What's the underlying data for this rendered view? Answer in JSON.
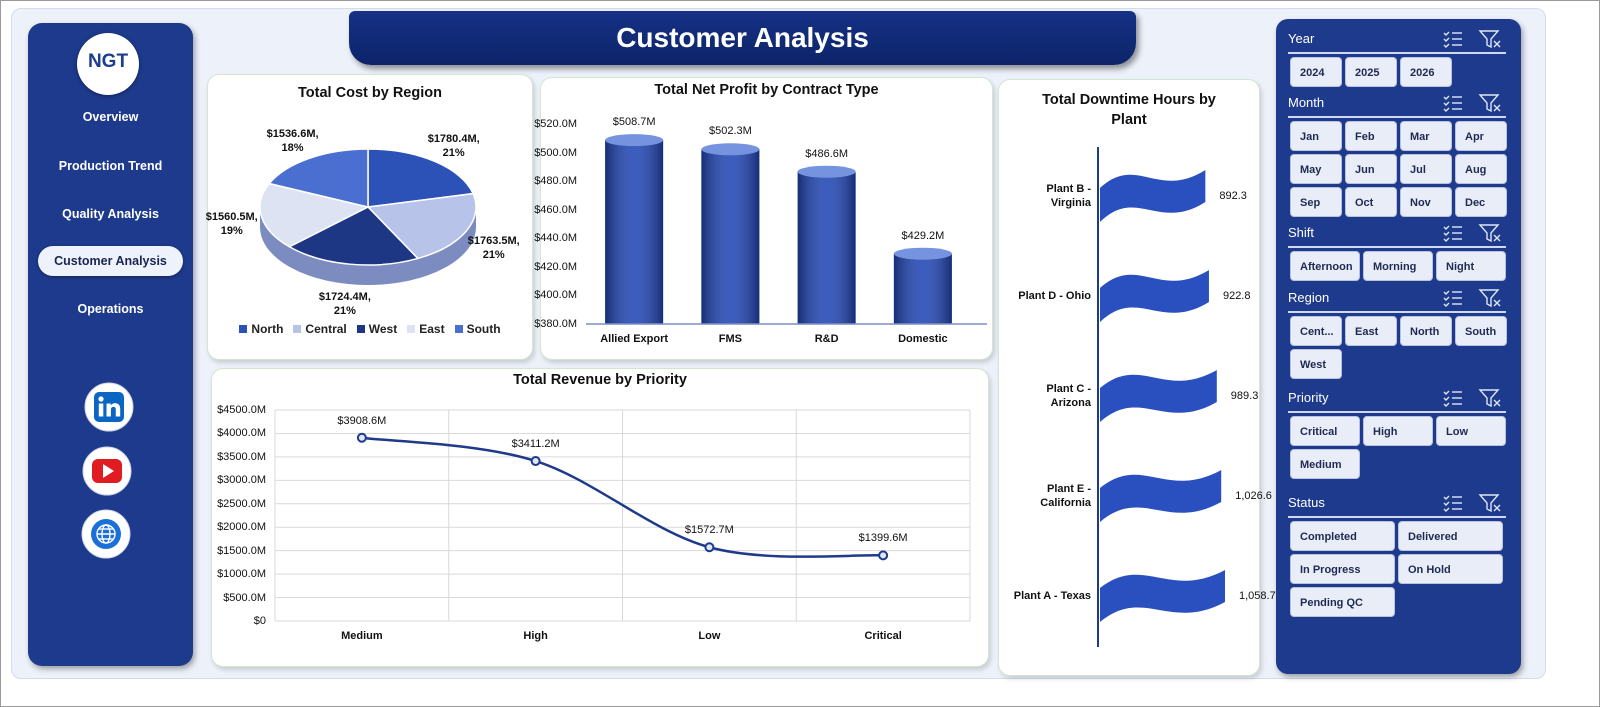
{
  "header": {
    "title": "Customer Analysis"
  },
  "nav": {
    "logo": "NGT",
    "items": [
      "Overview",
      "Production Trend",
      "Quality Analysis",
      "Customer Analysis",
      "Operations"
    ],
    "active": 3
  },
  "chart_data": [
    {
      "type": "pie",
      "title": "Total Cost by Region",
      "categories": [
        "North",
        "Central",
        "West",
        "East",
        "South"
      ],
      "values": [
        1780.4,
        1763.5,
        1724.4,
        1560.5,
        1536.6
      ],
      "value_labels": [
        "$1780.4M,\n21%",
        "$1763.5M,\n21%",
        "$1724.4M,\n21%",
        "$1560.5M,\n19%",
        "$1536.6M,\n18%"
      ],
      "colors": [
        "#2c52b8",
        "#b7c3e8",
        "#1d3785",
        "#dde3f3",
        "#4a6fd0"
      ],
      "legend": "bottom"
    },
    {
      "type": "bar",
      "title": "Total Net Profit by Contract Type",
      "categories": [
        "Allied Export",
        "FMS",
        "R&D",
        "Domestic"
      ],
      "values": [
        508.7,
        502.3,
        486.6,
        429.2
      ],
      "value_labels": [
        "$508.7M",
        "$502.3M",
        "$486.6M",
        "$429.2M"
      ],
      "color": "#2146b5",
      "ylim": [
        380,
        520
      ],
      "grid": false,
      "yticks": [
        {
          "value": 380,
          "label": "$380.0M"
        },
        {
          "value": 400,
          "label": "$400.0M"
        },
        {
          "value": 420,
          "label": "$420.0M"
        },
        {
          "value": 440,
          "label": "$440.0M"
        },
        {
          "value": 460,
          "label": "$460.0M"
        },
        {
          "value": 480,
          "label": "$480.0M"
        },
        {
          "value": 500,
          "label": "$500.0M"
        },
        {
          "value": 520,
          "label": "$520.0M"
        }
      ]
    },
    {
      "type": "hbar",
      "title": "Total Downtime Hours by Plant",
      "categories": [
        "Plant B - Virginia",
        "Plant D - Ohio",
        "Plant C - Arizona",
        "Plant E - California",
        "Plant A - Texas"
      ],
      "values": [
        892.3,
        922.8,
        989.3,
        1026.6,
        1058.7
      ],
      "value_labels": [
        "892.3",
        "922.8",
        "989.3",
        "1,026.6",
        "1,058.7"
      ],
      "color": "#2a50c0"
    },
    {
      "type": "line",
      "title": "Total Revenue by Priority",
      "categories": [
        "Medium",
        "High",
        "Low",
        "Critical"
      ],
      "values": [
        3908.6,
        3411.2,
        1572.7,
        1399.6
      ],
      "value_labels": [
        "$3908.6M",
        "$3411.2M",
        "$1572.7M",
        "$1399.6M"
      ],
      "color": "#1f3a8a",
      "ylim": [
        0,
        4500
      ],
      "grid": true,
      "yticks": [
        {
          "value": 0,
          "label": "$0"
        },
        {
          "value": 500,
          "label": "$500.0M"
        },
        {
          "value": 1000,
          "label": "$1000.0M"
        },
        {
          "value": 1500,
          "label": "$1500.0M"
        },
        {
          "value": 2000,
          "label": "$2000.0M"
        },
        {
          "value": 2500,
          "label": "$2500.0M"
        },
        {
          "value": 3000,
          "label": "$3000.0M"
        },
        {
          "value": 3500,
          "label": "$3500.0M"
        },
        {
          "value": 4000,
          "label": "$4000.0M"
        },
        {
          "value": 4500,
          "label": "$4500.0M"
        }
      ]
    }
  ],
  "slicers": [
    {
      "title": "Year",
      "items": [
        "2024",
        "2025",
        "2026"
      ]
    },
    {
      "title": "Month",
      "items": [
        "Jan",
        "Feb",
        "Mar",
        "Apr",
        "May",
        "Jun",
        "Jul",
        "Aug",
        "Sep",
        "Oct",
        "Nov",
        "Dec"
      ]
    },
    {
      "title": "Shift",
      "items": [
        "Afternoon",
        "Morning",
        "Night"
      ]
    },
    {
      "title": "Region",
      "items": [
        "Cent...",
        "East",
        "North",
        "South",
        "West"
      ]
    },
    {
      "title": "Priority",
      "items": [
        "Critical",
        "High",
        "Low",
        "Medium"
      ]
    },
    {
      "title": "Status",
      "items": [
        "Completed",
        "Delivered",
        "In Progress",
        "On Hold",
        "Pending QC"
      ]
    }
  ]
}
